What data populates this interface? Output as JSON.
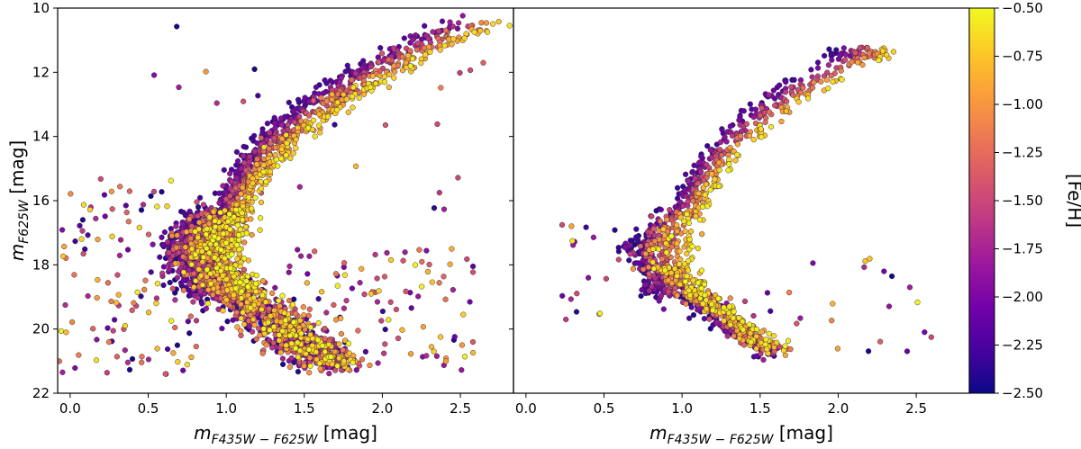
{
  "chart_data": {
    "type": "scatter",
    "description_note": "Two color-magnitude diagram panels sharing the y axis, points colored by [Fe/H]",
    "panels": [
      {
        "name": "left",
        "xlabel_main": "m",
        "xlabel_sub": "F435W − F625W",
        "xlabel_unit": " [mag]",
        "ylabel_main": "m",
        "ylabel_sub": "F625W",
        "ylabel_unit": " [mag]",
        "xlim": [
          -0.08,
          2.84
        ],
        "ylim": [
          22,
          10
        ],
        "xticks": [
          0.0,
          0.5,
          1.0,
          1.5,
          2.0,
          2.5
        ],
        "xtick_labels": [
          "0.0",
          "0.5",
          "1.0",
          "1.5",
          "2.0",
          "2.5"
        ],
        "yticks": [
          10,
          12,
          14,
          16,
          18,
          20,
          22
        ],
        "ytick_labels": [
          "10",
          "12",
          "14",
          "16",
          "18",
          "20",
          "22"
        ],
        "seed": 17,
        "counts": {
          "rgb": 900,
          "subgiant": 420,
          "turnoff": 520,
          "ms": 900,
          "scatter": 260
        }
      },
      {
        "name": "right",
        "xlabel_main": "m",
        "xlabel_sub": "F435W − F625W",
        "xlabel_unit": " [mag]",
        "xlim": [
          -0.08,
          2.84
        ],
        "ylim": [
          22,
          10
        ],
        "xticks": [
          0.0,
          0.5,
          1.0,
          1.5,
          2.0,
          2.5
        ],
        "xtick_labels": [
          "0.0",
          "0.5",
          "1.0",
          "1.5",
          "2.0",
          "2.5"
        ],
        "seed": 41,
        "counts": {
          "rgb": 420,
          "subgiant": 120,
          "turnoff": 260,
          "ms": 520,
          "scatter": 45
        }
      }
    ],
    "colorbar": {
      "label": "[Fe/H]",
      "range": [
        -2.5,
        -0.5
      ],
      "ticks": [
        -0.5,
        -0.75,
        -1.0,
        -1.25,
        -1.5,
        -1.75,
        -2.0,
        -2.25,
        -2.5
      ],
      "tick_labels": [
        "−0.50",
        "−0.75",
        "−1.00",
        "−1.25",
        "−1.50",
        "−1.75",
        "−2.00",
        "−2.25",
        "−2.50"
      ],
      "colormap": "plasma",
      "stops": [
        "#0d0887",
        "#46039f",
        "#7201a8",
        "#9c179e",
        "#bd3786",
        "#d8576b",
        "#ed7953",
        "#fb9f3a",
        "#fdca26",
        "#f0f921"
      ]
    }
  }
}
